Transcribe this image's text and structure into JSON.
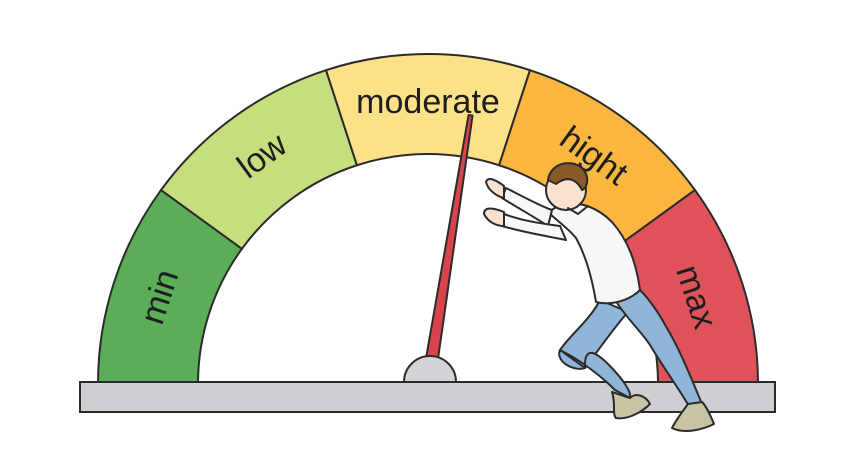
{
  "gauge": {
    "segments": [
      {
        "key": "min",
        "label": "min",
        "color": "#5cad57"
      },
      {
        "key": "low",
        "label": "low",
        "color": "#c7de7e"
      },
      {
        "key": "moderate",
        "label": "moderate",
        "color": "#fde189"
      },
      {
        "key": "high",
        "label": "hight",
        "color": "#fbb640"
      },
      {
        "key": "max",
        "label": "max",
        "color": "#e0525a"
      }
    ],
    "needle_color": "#d9434c",
    "needle_level": 0.55,
    "base_color": "#cdcfd5",
    "outline_color": "#2b2b2b"
  },
  "figure": {
    "description_icon": "man-pushing-needle",
    "shirt_color": "#f7f7f7",
    "pants_color": "#8fb5d9",
    "hair_color": "#8a5a2b",
    "skin_color": "#fbe2cf",
    "shoe_color": "#c8c3a4"
  }
}
